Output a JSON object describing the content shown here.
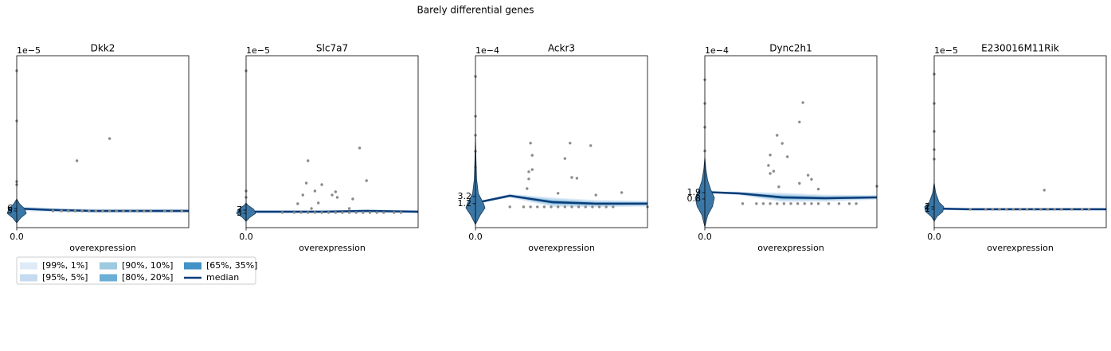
{
  "title": "Barely differential genes",
  "legend": {
    "bands": [
      {
        "name": "[99%, 1%]",
        "color": "#deebf7"
      },
      {
        "name": "[95%, 5%]",
        "color": "#c6dbef"
      },
      {
        "name": "[90%, 10%]",
        "color": "#9ecae1"
      },
      {
        "name": "[80%, 20%]",
        "color": "#6baed6"
      },
      {
        "name": "[65%, 35%]",
        "color": "#4292c6"
      }
    ],
    "median": {
      "name": "median",
      "color": "#0b3c78"
    }
  },
  "chart_data": [
    {
      "type": "quantile",
      "title": "Dkk2",
      "xlabel": "overexpression",
      "y_offset": "1e−5",
      "xlim": [
        0,
        1
      ],
      "ylim": [
        -2,
        70
      ],
      "xticks": [
        {
          "value": 0,
          "label": "0.0"
        }
      ],
      "yticks": [
        5,
        6
      ],
      "x": [
        0,
        0.2,
        0.45,
        0.7,
        1
      ],
      "median": [
        6,
        5.4,
        5,
        5,
        5
      ],
      "bands": [
        {
          "lower": [
            5.1,
            4.5,
            4.1,
            4.1,
            4.1
          ],
          "upper": [
            6.9,
            6.3,
            5.9,
            5.9,
            5.9
          ]
        },
        {
          "lower": [
            5.4,
            4.8,
            4.4,
            4.4,
            4.4
          ],
          "upper": [
            6.6,
            6.0,
            5.6,
            5.6,
            5.6
          ]
        },
        {
          "lower": [
            5.6,
            5.0,
            4.6,
            4.6,
            4.6
          ],
          "upper": [
            6.4,
            5.8,
            5.4,
            5.4,
            5.4
          ]
        },
        {
          "lower": [
            5.75,
            5.15,
            4.75,
            4.75,
            4.75
          ],
          "upper": [
            6.25,
            5.65,
            5.25,
            5.25,
            5.25
          ]
        },
        {
          "lower": [
            5.9,
            5.3,
            4.9,
            4.9,
            4.9
          ],
          "upper": [
            6.1,
            5.5,
            5.1,
            5.1,
            5.1
          ]
        }
      ],
      "violin": {
        "y": [
          0,
          2,
          4,
          6,
          8,
          10
        ],
        "density": [
          0,
          0.4,
          1,
          0.8,
          0.3,
          0
        ]
      },
      "points": {
        "x": [
          0,
          0,
          0,
          0,
          0.35,
          0.54,
          0.21,
          0.26,
          0.3,
          0.34,
          0.38,
          0.42,
          0.46,
          0.5,
          0.54,
          0.58,
          0.62,
          0.66,
          0.7,
          0.74,
          0.78,
          0.86,
          0.9,
          0.96
        ],
        "y": [
          63.7,
          42.7,
          17.3,
          16,
          26,
          35.3,
          5,
          5,
          5,
          5,
          5,
          5,
          5,
          5,
          5,
          5,
          5,
          5,
          5,
          5,
          5,
          5,
          5,
          5
        ]
      }
    },
    {
      "type": "quantile",
      "title": "Slc7a7",
      "xlabel": "overexpression",
      "y_offset": "1e−5",
      "xlim": [
        0,
        1
      ],
      "ylim": [
        -15,
        201
      ],
      "xticks": [
        {
          "value": 0,
          "label": "0.0"
        }
      ],
      "yticks": [
        3,
        7
      ],
      "x": [
        0,
        0.2,
        0.45,
        0.7,
        1
      ],
      "median": [
        5,
        5,
        5,
        6,
        5
      ],
      "bands": [
        {
          "lower": [
            3,
            3,
            3,
            4,
            3
          ],
          "upper": [
            7,
            7,
            7,
            8,
            7
          ]
        },
        {
          "lower": [
            3.5,
            3.5,
            3.5,
            4.5,
            3.5
          ],
          "upper": [
            6.5,
            6.5,
            6.5,
            7.5,
            6.5
          ]
        },
        {
          "lower": [
            4,
            4,
            4,
            5,
            4
          ],
          "upper": [
            6,
            6,
            6,
            7,
            6
          ]
        },
        {
          "lower": [
            4.4,
            4.4,
            4.4,
            5.4,
            4.4
          ],
          "upper": [
            5.6,
            5.6,
            5.6,
            6.6,
            5.6
          ]
        },
        {
          "lower": [
            4.7,
            4.7,
            4.7,
            5.7,
            4.7
          ],
          "upper": [
            5.3,
            5.3,
            5.3,
            6.3,
            5.3
          ]
        }
      ],
      "violin": {
        "y": [
          -7,
          -2,
          3,
          8,
          13,
          16
        ],
        "density": [
          0,
          0.4,
          1,
          0.8,
          0.2,
          0
        ]
      },
      "points": {
        "x": [
          0,
          0,
          0,
          0.66,
          0.7,
          0.36,
          0.35,
          0.4,
          0.44,
          0.52,
          0.33,
          0.5,
          0.53,
          0.62,
          0.42,
          0.3,
          0.38,
          0.6,
          0.21,
          0.28,
          0.32,
          0.36,
          0.4,
          0.44,
          0.48,
          0.52,
          0.56,
          0.6,
          0.64,
          0.68,
          0.72,
          0.76,
          0.8,
          0.86,
          0.9
        ],
        "y": [
          182,
          31,
          23,
          85,
          44,
          69,
          41,
          31,
          39,
          30,
          26,
          26,
          23,
          21,
          16,
          15,
          9,
          9,
          4,
          4,
          4,
          4,
          4,
          4,
          4,
          4,
          4,
          4,
          4,
          4,
          4,
          4,
          4,
          4,
          4
        ]
      }
    },
    {
      "type": "quantile",
      "title": "Ackr3",
      "xlabel": "overexpression",
      "y_offset": "1e−4",
      "xlim": [
        0,
        1
      ],
      "ylim": [
        -5.5,
        42.5
      ],
      "xticks": [
        {
          "value": 0,
          "label": "0.0"
        }
      ],
      "yticks": [
        1.2,
        3.2
      ],
      "x": [
        0,
        0.2,
        0.45,
        0.7,
        1
      ],
      "median": [
        1.4,
        3.4,
        1.6,
        1.2,
        1.2
      ],
      "bands": [
        {
          "lower": [
            1.1,
            2.9,
            0.3,
            0.2,
            0.4
          ],
          "upper": [
            1.7,
            3.9,
            2.9,
            2.2,
            2.0
          ]
        },
        {
          "lower": [
            1.18,
            3.02,
            0.6,
            0.45,
            0.6
          ],
          "upper": [
            1.62,
            3.78,
            2.6,
            1.95,
            1.8
          ]
        },
        {
          "lower": [
            1.25,
            3.15,
            0.95,
            0.7,
            0.8
          ],
          "upper": [
            1.55,
            3.65,
            2.25,
            1.7,
            1.6
          ]
        },
        {
          "lower": [
            1.3,
            3.25,
            1.2,
            0.9,
            0.95
          ],
          "upper": [
            1.5,
            3.55,
            2.0,
            1.5,
            1.45
          ]
        },
        {
          "lower": [
            1.35,
            3.32,
            1.4,
            1.05,
            1.08
          ],
          "upper": [
            1.45,
            3.48,
            1.8,
            1.35,
            1.32
          ]
        }
      ],
      "violin": {
        "y": [
          -4.6,
          -2,
          0,
          1.5,
          4,
          8,
          14,
          20
        ],
        "density": [
          0,
          0.5,
          1,
          0.8,
          0.3,
          0.12,
          0.05,
          0
        ]
      },
      "points": {
        "x": [
          0,
          0,
          0,
          0,
          0,
          0.32,
          0.33,
          0.31,
          0.33,
          0.55,
          0.67,
          0.56,
          0.59,
          0.52,
          0.31,
          0.3,
          0.48,
          0.7,
          0.85,
          0.2,
          0.28,
          0.32,
          0.36,
          0.4,
          0.44,
          0.48,
          0.52,
          0.56,
          0.6,
          0.64,
          0.68,
          0.72,
          0.76,
          0.8,
          1.0
        ],
        "y": [
          36.7,
          25.6,
          20.3,
          15.8,
          11.4,
          18.1,
          14.7,
          10.1,
          10.7,
          18.1,
          17.4,
          8.5,
          8.3,
          13.8,
          8.1,
          5.4,
          4.1,
          3.6,
          4.3,
          0.3,
          0.3,
          0.3,
          0.3,
          0.3,
          0.3,
          0.3,
          0.3,
          0.3,
          0.3,
          0.3,
          0.3,
          0.3,
          0.3,
          0.3,
          0.3
        ]
      }
    },
    {
      "type": "quantile",
      "title": "Dync2h1",
      "xlabel": "overexpression",
      "y_offset": "1e−4",
      "xlim": [
        0,
        1
      ],
      "ylim": [
        -4.15,
        25.55
      ],
      "xticks": [
        {
          "value": 0,
          "label": "0.0"
        }
      ],
      "yticks": [
        0.8,
        1.9
      ],
      "x": [
        0,
        0.2,
        0.45,
        0.7,
        1
      ],
      "median": [
        2.0,
        1.76,
        1.08,
        0.94,
        1.08
      ],
      "bands": [
        {
          "lower": [
            1.9,
            1.46,
            0.28,
            0.34,
            0.68
          ],
          "upper": [
            2.1,
            2.06,
            1.88,
            1.54,
            1.48
          ]
        },
        {
          "lower": [
            1.92,
            1.54,
            0.48,
            0.49,
            0.78
          ],
          "upper": [
            2.08,
            1.98,
            1.68,
            1.39,
            1.38
          ]
        },
        {
          "lower": [
            1.95,
            1.61,
            0.68,
            0.64,
            0.88
          ],
          "upper": [
            2.05,
            1.91,
            1.48,
            1.24,
            1.28
          ]
        },
        {
          "lower": [
            1.97,
            1.66,
            0.83,
            0.74,
            0.96
          ],
          "upper": [
            2.03,
            1.86,
            1.33,
            1.14,
            1.2
          ]
        },
        {
          "lower": [
            1.98,
            1.71,
            0.96,
            0.84,
            1.02
          ],
          "upper": [
            2.02,
            1.81,
            1.2,
            1.04,
            1.14
          ]
        }
      ],
      "violin": {
        "y": [
          -4,
          -2,
          -0.5,
          1,
          2.5,
          4,
          6,
          8
        ],
        "density": [
          0,
          0.3,
          0.8,
          1,
          0.6,
          0.3,
          0.1,
          0
        ]
      },
      "points": {
        "x": [
          0,
          0,
          0,
          0,
          0,
          0.57,
          0.55,
          0.42,
          0.45,
          0.48,
          0.38,
          0.37,
          0.4,
          0.38,
          0.6,
          0.62,
          0.55,
          0.43,
          0.66,
          1.0,
          0.22,
          0.3,
          0.34,
          0.38,
          0.42,
          0.46,
          0.5,
          0.54,
          0.58,
          0.62,
          0.66,
          0.72,
          0.78,
          0.84,
          0.88
        ],
        "y": [
          21.4,
          17.3,
          13.2,
          9.1,
          5.6,
          17.45,
          14.1,
          11.8,
          10.4,
          8.1,
          8.4,
          6.6,
          5.6,
          5.2,
          4.9,
          4.2,
          3.5,
          2.9,
          2.5,
          3.0,
          0,
          0,
          0,
          0,
          0,
          0,
          0,
          0,
          0,
          0,
          0,
          0,
          0,
          0,
          0
        ]
      }
    },
    {
      "type": "quantile",
      "title": "E230016M11Rik",
      "xlabel": "overexpression",
      "y_offset": "1e−5",
      "xlim": [
        0,
        1
      ],
      "ylim": [
        -6.7,
        65.3
      ],
      "xticks": [
        {
          "value": 0,
          "label": "0.0"
        }
      ],
      "yticks": [
        1,
        2
      ],
      "x": [
        0,
        0.2,
        0.45,
        0.7,
        1
      ],
      "median": [
        1.3,
        1.0,
        1.0,
        1.0,
        1.0
      ],
      "bands": [
        {
          "lower": [
            0.7,
            0.4,
            0.4,
            0.4,
            0.4
          ],
          "upper": [
            1.9,
            1.6,
            1.6,
            1.6,
            1.6
          ]
        },
        {
          "lower": [
            0.85,
            0.55,
            0.55,
            0.55,
            0.55
          ],
          "upper": [
            1.75,
            1.45,
            1.45,
            1.45,
            1.45
          ]
        },
        {
          "lower": [
            1.0,
            0.7,
            0.7,
            0.7,
            0.7
          ],
          "upper": [
            1.6,
            1.3,
            1.3,
            1.3,
            1.3
          ]
        },
        {
          "lower": [
            1.1,
            0.8,
            0.8,
            0.8,
            0.8
          ],
          "upper": [
            1.5,
            1.2,
            1.2,
            1.2,
            1.2
          ]
        },
        {
          "lower": [
            1.2,
            0.9,
            0.9,
            0.9,
            0.9
          ],
          "upper": [
            1.4,
            1.1,
            1.1,
            1.1,
            1.1
          ]
        }
      ],
      "violin": {
        "y": [
          -4,
          -2,
          0,
          2,
          4,
          8,
          12
        ],
        "density": [
          0,
          0.3,
          0.9,
          1,
          0.5,
          0.15,
          0
        ]
      },
      "points": {
        "x": [
          0,
          0,
          0,
          0,
          0,
          0.64,
          0.21,
          0.3,
          0.34,
          0.38,
          0.42,
          0.46,
          0.5,
          0.54,
          0.58,
          0.62,
          0.66,
          0.7,
          0.74,
          0.8,
          0.86,
          0.9
        ],
        "y": [
          57.6,
          45.3,
          33.6,
          26,
          22,
          9.0,
          1,
          1,
          1,
          1,
          1,
          1,
          1,
          1,
          1,
          1,
          1,
          1,
          1,
          1,
          1,
          1
        ]
      }
    }
  ]
}
